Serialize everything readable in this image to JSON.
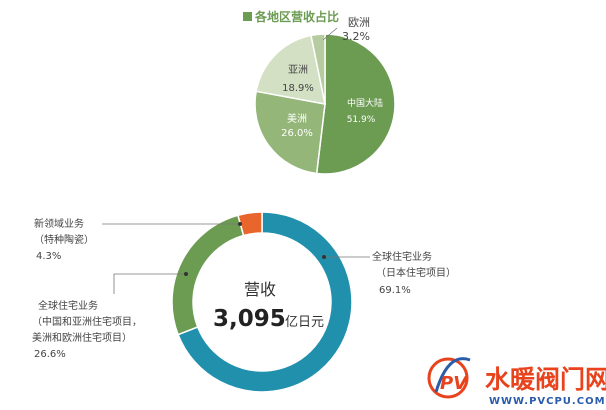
{
  "chart_data": [
    {
      "type": "pie",
      "title": "各地区营收占比",
      "slices": [
        {
          "label": "中国大陆",
          "value": 51.9,
          "value_text": "51.9%",
          "color": "#6c9b52"
        },
        {
          "label": "美洲",
          "value": 26.0,
          "value_text": "26.0%",
          "color": "#94b679"
        },
        {
          "label": "亚洲",
          "value": 18.9,
          "value_text": "18.9%",
          "color": "#d3e0c4"
        },
        {
          "label": "欧洲",
          "value": 3.2,
          "value_text": "3.2%",
          "color": "#b6cca0"
        }
      ]
    },
    {
      "type": "pie",
      "variant": "donut",
      "center_label": "营收",
      "center_value": "3,095",
      "center_unit": "亿日元",
      "slices": [
        {
          "label": "全球住宅业务",
          "sublabel": "（日本住宅项目）",
          "value": 69.1,
          "value_text": "69.1%",
          "color": "#2190ad"
        },
        {
          "label": "全球住宅业务",
          "sublabel": "（中国和亚洲住宅项目，",
          "sublabel2": "美洲和欧洲住宅项目）",
          "value": 26.6,
          "value_text": "26.6%",
          "color": "#6c9b52"
        },
        {
          "label": "新领域业务",
          "sublabel": "（特种陶瓷）",
          "value": 4.3,
          "value_text": "4.3%",
          "color": "#e8662c"
        }
      ]
    }
  ],
  "watermark": {
    "brand_text": "水暖阀门网",
    "url_text": "WWW.PVCPU.COM",
    "logo_letters": "PV",
    "brand_color": "#e8431d",
    "url_color": "#2a5caa"
  }
}
